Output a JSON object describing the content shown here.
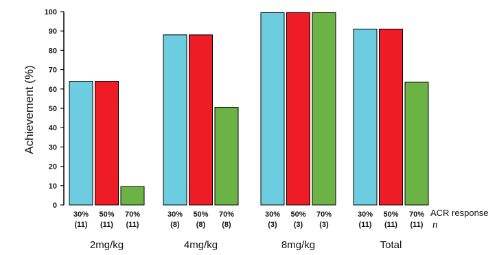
{
  "chart_data": {
    "type": "bar",
    "ylabel": "Achievement (%)",
    "ylim": [
      0,
      100
    ],
    "yticks": [
      "0",
      "10",
      "20",
      "30",
      "40",
      "50",
      "60",
      "70",
      "80",
      "90",
      "100"
    ],
    "bar_row_label": "ACR response",
    "n_row_label": "n",
    "colors": {
      "30%": "#6ccde0",
      "50%": "#ee1c24",
      "70%": "#6ab344"
    },
    "groups": [
      {
        "name": "2mg/kg",
        "bars": [
          {
            "label": "30%",
            "n": "(11)",
            "value": 64
          },
          {
            "label": "50%",
            "n": "(11)",
            "value": 64
          },
          {
            "label": "70%",
            "n": "(11)",
            "value": 9.5
          }
        ]
      },
      {
        "name": "4mg/kg",
        "bars": [
          {
            "label": "30%",
            "n": "(8)",
            "value": 88
          },
          {
            "label": "50%",
            "n": "(8)",
            "value": 88
          },
          {
            "label": "70%",
            "n": "(8)",
            "value": 50.5
          }
        ]
      },
      {
        "name": "8mg/kg",
        "bars": [
          {
            "label": "30%",
            "n": "(3)",
            "value": 99.5
          },
          {
            "label": "50%",
            "n": "(3)",
            "value": 99.5
          },
          {
            "label": "70%",
            "n": "(3)",
            "value": 99.5
          }
        ]
      },
      {
        "name": "Total",
        "bars": [
          {
            "label": "30%",
            "n": "(11)",
            "value": 91
          },
          {
            "label": "50%",
            "n": "(11)",
            "value": 91
          },
          {
            "label": "70%",
            "n": "(11)",
            "value": 63.5
          }
        ]
      }
    ]
  }
}
